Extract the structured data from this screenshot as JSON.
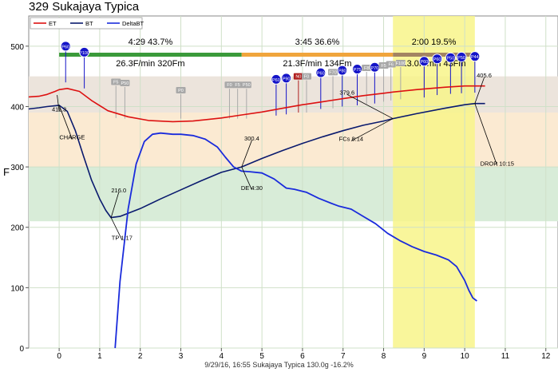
{
  "title": "329 Sukajaya Typica",
  "footer": "9/29/16, 16:55   Sukajaya Typica   130.0g   -16.2%",
  "colors": {
    "et": "#dd1111",
    "bt": "#0a1a6e",
    "delta": "#1a2bdc",
    "phase_dry": "#3a9a3a",
    "phase_maillard": "#f0a53c",
    "phase_dev": "#a38462",
    "band_top": "#ece4dc",
    "band_mid": "#fbead2",
    "band_low": "#d8ecd8",
    "dev_highlight": "#f8f58a",
    "grid": "#cfe0c8",
    "marker": "#1414c8",
    "marker_gray": "#a8a8a8",
    "marker_red": "#b02020"
  },
  "chart_data": {
    "type": "line",
    "title": "329 Sukajaya Typica",
    "xlabel": "",
    "ylabel": "F",
    "xlim": [
      -0.75,
      12.3
    ],
    "ylim": [
      0,
      550
    ],
    "x_ticks": [
      0,
      1,
      2,
      3,
      4,
      5,
      6,
      7,
      8,
      9,
      10,
      11,
      12
    ],
    "y_ticks": [
      0,
      100,
      200,
      300,
      400,
      500
    ],
    "grid": true,
    "legend": {
      "placement": "top-left",
      "entries": [
        "ET",
        "BT",
        "DeltaBT"
      ]
    },
    "bands": [
      {
        "y0": 390,
        "y1": 450,
        "color_key": "band_top"
      },
      {
        "y0": 300,
        "y1": 390,
        "color_key": "band_mid"
      },
      {
        "y0": 210,
        "y1": 300,
        "color_key": "band_low"
      }
    ],
    "dev_highlight": {
      "x0": 8.23,
      "x1": 10.25
    },
    "phases": [
      {
        "x0": 0,
        "x1": 4.5,
        "time": "4:29",
        "pct": "43.7%",
        "ror": "26.3F/min  320Fm",
        "color_key": "phase_dry"
      },
      {
        "x0": 4.5,
        "x1": 8.23,
        "time": "3:45",
        "pct": "36.6%",
        "ror": "21.3F/min  134Fm",
        "color_key": "phase_maillard"
      },
      {
        "x0": 8.23,
        "x1": 10.25,
        "time": "2:00",
        "pct": "19.5%",
        "ror": "13.0F/min  43Fm",
        "color_key": "phase_dev"
      }
    ],
    "series": [
      {
        "name": "ET",
        "color_key": "et",
        "x": [
          -0.75,
          -0.5,
          -0.3,
          -0.1,
          0,
          0.2,
          0.5,
          0.8,
          1.2,
          1.7,
          2.2,
          2.8,
          3.3,
          4.0,
          4.5,
          5.0,
          5.5,
          6.0,
          6.5,
          7.0,
          7.5,
          8.0,
          8.23,
          8.8,
          9.5,
          10.0,
          10.5
        ],
        "y": [
          416,
          417,
          420,
          425,
          428,
          430,
          425,
          410,
          393,
          383,
          377,
          375,
          376,
          381,
          386,
          391,
          397,
          403,
          408,
          413,
          418,
          422,
          424,
          428,
          432,
          434,
          434
        ]
      },
      {
        "name": "BT",
        "color_key": "bt",
        "x": [
          -0.75,
          -0.5,
          -0.3,
          0,
          0.2,
          0.4,
          0.6,
          0.8,
          1.0,
          1.15,
          1.28,
          1.5,
          2.0,
          2.5,
          3.0,
          3.5,
          4.0,
          4.5,
          5.0,
          5.5,
          6.0,
          6.5,
          7.0,
          7.5,
          8.0,
          8.23,
          8.8,
          9.5,
          10.0,
          10.25,
          10.5
        ],
        "y": [
          396,
          398,
          400,
          402,
          392,
          360,
          318,
          278,
          247,
          228,
          216,
          218,
          231,
          247,
          262,
          277,
          291,
          300,
          314,
          327,
          339,
          350,
          360,
          369,
          376,
          380,
          388,
          397,
          403,
          405,
          405
        ]
      },
      {
        "name": "DeltaBT",
        "color_key": "delta",
        "x": [
          1.38,
          1.5,
          1.7,
          1.9,
          2.1,
          2.3,
          2.5,
          2.8,
          3.0,
          3.3,
          3.6,
          3.9,
          4.1,
          4.3,
          4.5,
          4.7,
          5.0,
          5.3,
          5.6,
          5.8,
          6.1,
          6.4,
          6.7,
          6.9,
          7.2,
          7.5,
          7.8,
          8.1,
          8.4,
          8.7,
          9.0,
          9.3,
          9.6,
          9.8,
          10.0,
          10.1,
          10.2,
          10.3
        ],
        "y": [
          0,
          110,
          230,
          305,
          342,
          354,
          356,
          354,
          354,
          352,
          346,
          333,
          316,
          300,
          293,
          292,
          290,
          280,
          265,
          263,
          258,
          248,
          240,
          235,
          230,
          218,
          206,
          190,
          178,
          168,
          160,
          154,
          146,
          135,
          112,
          96,
          83,
          78
        ]
      }
    ],
    "annotations": [
      {
        "text": "411.3",
        "x": -0.05,
        "y": 419,
        "tx": 0.0,
        "ty": 392
      },
      {
        "text": "CHARGE",
        "x": 0.0,
        "y": 402,
        "tx": 0.32,
        "ty": 346
      },
      {
        "text": "216.0",
        "x": 1.28,
        "y": 216,
        "tx": 1.47,
        "ty": 258
      },
      {
        "text": "TP 1:17",
        "x": 1.28,
        "y": 216,
        "tx": 1.55,
        "ty": 179
      },
      {
        "text": "300.4",
        "x": 4.5,
        "y": 300,
        "tx": 4.75,
        "ty": 344
      },
      {
        "text": "DE 4:30",
        "x": 4.5,
        "y": 300,
        "tx": 4.75,
        "ty": 262
      },
      {
        "text": "379.6",
        "x": 8.23,
        "y": 380,
        "tx": 7.1,
        "ty": 420
      },
      {
        "text": "FCs 8:14",
        "x": 8.23,
        "y": 380,
        "tx": 7.2,
        "ty": 343
      },
      {
        "text": "405.6",
        "x": 10.25,
        "y": 405,
        "tx": 10.48,
        "ty": 448
      },
      {
        "text": "DROP 10:15",
        "x": 10.25,
        "y": 405,
        "tx": 10.8,
        "ty": 302
      }
    ],
    "event_markers": [
      {
        "label": "P60",
        "x": 0.16,
        "y": 500,
        "style": "blue"
      },
      {
        "label": "P100",
        "x": 0.62,
        "y": 490,
        "style": "blue"
      },
      {
        "label": "F5",
        "x": 1.4,
        "y": 441,
        "style": "gray"
      },
      {
        "label": "P50",
        "x": 1.62,
        "y": 439,
        "style": "gray"
      },
      {
        "label": "P0",
        "x": 3.0,
        "y": 427,
        "style": "gray"
      },
      {
        "label": "F0",
        "x": 4.2,
        "y": 436,
        "style": "gray"
      },
      {
        "label": "F5",
        "x": 4.4,
        "y": 436,
        "style": "gray"
      },
      {
        "label": "P50",
        "x": 4.62,
        "y": 436,
        "style": "gray"
      },
      {
        "label": "P60",
        "x": 5.35,
        "y": 445,
        "style": "blue"
      },
      {
        "label": "P90",
        "x": 5.6,
        "y": 447,
        "style": "blue"
      },
      {
        "label": "N0",
        "x": 5.9,
        "y": 450,
        "style": "red"
      },
      {
        "label": "F0",
        "x": 6.1,
        "y": 450,
        "style": "gray"
      },
      {
        "label": "P60",
        "x": 6.45,
        "y": 456,
        "style": "blue"
      },
      {
        "label": "F70",
        "x": 6.75,
        "y": 457,
        "style": "gray"
      },
      {
        "label": "P80",
        "x": 6.98,
        "y": 460,
        "style": "blue"
      },
      {
        "label": "P75",
        "x": 7.35,
        "y": 462,
        "style": "blue"
      },
      {
        "label": "F8",
        "x": 7.58,
        "y": 464,
        "style": "gray"
      },
      {
        "label": "P70",
        "x": 7.78,
        "y": 465,
        "style": "blue"
      },
      {
        "label": "F5",
        "x": 8.0,
        "y": 468,
        "style": "gray"
      },
      {
        "label": "F6",
        "x": 8.18,
        "y": 470,
        "style": "gray"
      },
      {
        "label": "F100",
        "x": 8.42,
        "y": 472,
        "style": "gray"
      },
      {
        "label": "P60",
        "x": 9.0,
        "y": 475,
        "style": "blue"
      },
      {
        "label": "P60",
        "x": 9.32,
        "y": 479,
        "style": "blue"
      },
      {
        "label": "P50",
        "x": 9.65,
        "y": 481,
        "style": "blue"
      },
      {
        "label": "P50",
        "x": 9.92,
        "y": 482,
        "style": "blue"
      },
      {
        "label": "P44",
        "x": 10.25,
        "y": 483,
        "style": "blue"
      }
    ]
  }
}
